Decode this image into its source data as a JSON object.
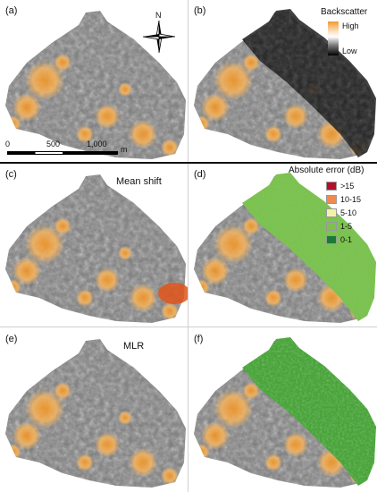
{
  "panels": {
    "a": {
      "label": "(a)"
    },
    "b": {
      "label": "(b)"
    },
    "c": {
      "label": "(c)",
      "title": "Mean shift"
    },
    "d": {
      "label": "(d)"
    },
    "e": {
      "label": "(e)",
      "title": "MLR"
    },
    "f": {
      "label": "(f)"
    }
  },
  "north_arrow": {
    "label": "N"
  },
  "scale_bar": {
    "ticks": [
      "0",
      "500",
      "1,000"
    ],
    "unit": "m"
  },
  "backscatter_legend": {
    "title": "Backscatter",
    "high": "High",
    "low": "Low",
    "colors": {
      "high": "#f29a2e",
      "mid": "#ffffff",
      "low": "#000000"
    }
  },
  "error_legend": {
    "title": "Absolute error (dB)",
    "classes": [
      {
        "label": ">15",
        "color": "#b30f2b"
      },
      {
        "label": "10-15",
        "color": "#f08a52"
      },
      {
        "label": "5-10",
        "color": "#f6f3a8"
      },
      {
        "label": "1-5",
        "color": "#7cc24b"
      },
      {
        "label": "0-1",
        "color": "#1a7a33"
      }
    ]
  }
}
